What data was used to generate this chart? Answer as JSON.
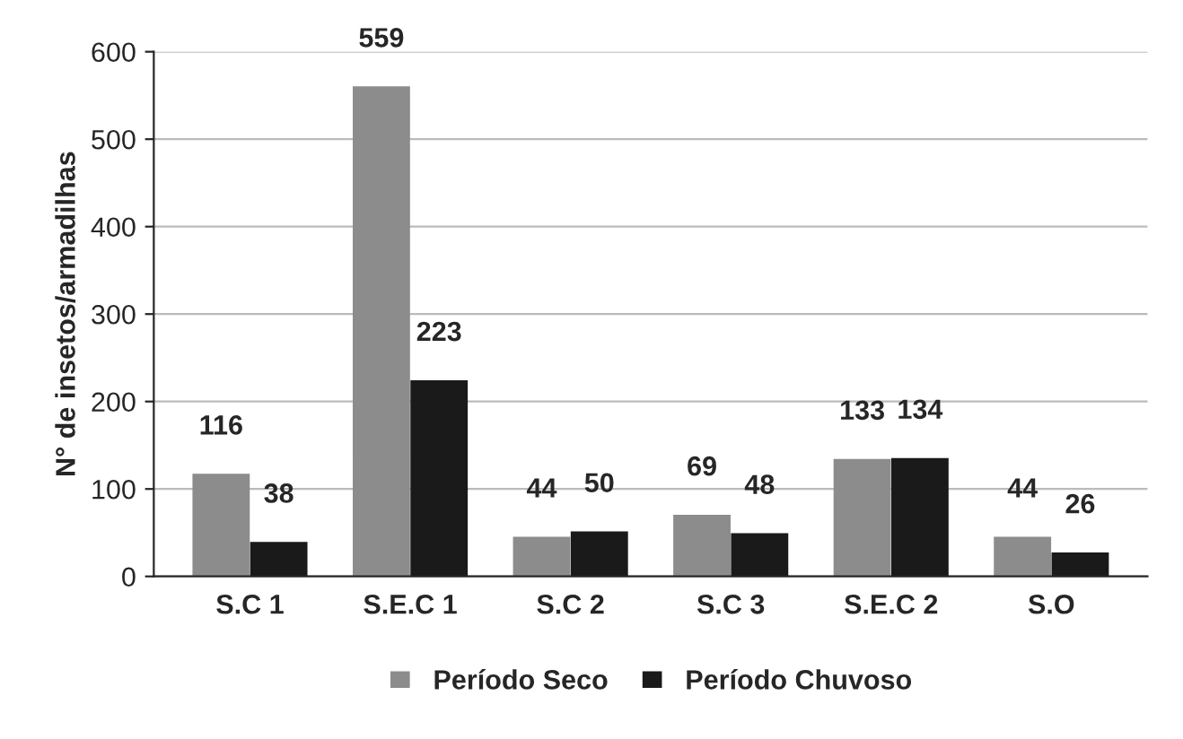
{
  "chart_data": {
    "type": "bar",
    "ylabel": "N° de insetos/armadilhas",
    "categories": [
      "S.C 1",
      "S.E.C 1",
      "S.C 2",
      "S.C 3",
      "S.E.C 2",
      "S.O"
    ],
    "series": [
      {
        "name": "Período Seco",
        "color": "#8c8c8c",
        "values": [
          116,
          559,
          44,
          69,
          133,
          44
        ]
      },
      {
        "name": "Período Chuvoso",
        "color": "#1a1a1a",
        "values": [
          38,
          223,
          50,
          48,
          134,
          26
        ]
      }
    ],
    "ylim": [
      0,
      600
    ],
    "yticks": [
      0,
      100,
      200,
      300,
      400,
      500,
      600
    ],
    "grid": "y",
    "legend": "bottom",
    "data_labels": true
  }
}
